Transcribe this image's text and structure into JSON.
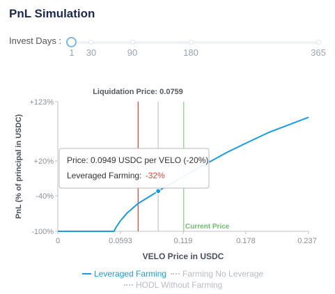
{
  "page_title": "PnL Simulation",
  "invest_days": {
    "label": "Invest Days :",
    "marks": [
      "1",
      "30",
      "90",
      "180",
      "365"
    ],
    "selected": "1"
  },
  "chart_data": {
    "type": "line",
    "x_label": "VELO Price in USDC",
    "y_label": "PnL (% of principal in USDC)",
    "x_ticks": [
      "0",
      "0.0593",
      "0.119",
      "0.178",
      "0.237"
    ],
    "y_ticks": [
      "+123%",
      "+20%",
      "-40%",
      "-100%"
    ],
    "xlim": [
      0,
      0.237
    ],
    "series": [
      {
        "name": "Leveraged Farming",
        "color": "#1a9ae0",
        "x": [
          0,
          0.0531,
          0.0552,
          0.0593,
          0.0656,
          0.0759,
          0.0949,
          0.119,
          0.14,
          0.16,
          0.178,
          0.2,
          0.22,
          0.237
        ],
        "y": [
          -100,
          -100,
          -93,
          -82,
          -69,
          -53,
          -32,
          -6,
          15,
          35,
          51,
          70,
          84,
          96
        ]
      }
    ],
    "legend": [
      {
        "label": "Leveraged Farming",
        "active": true,
        "color": "#1a9ae0"
      },
      {
        "label": "Farming No Leverage",
        "active": false,
        "color": "#c8c8c8"
      },
      {
        "label": "HODL Without Farming",
        "active": false,
        "color": "#c8c8c8"
      }
    ],
    "reference_lines": [
      {
        "label": "Liquidation Price: 0.0759",
        "x": 0.0759,
        "color": "#e0483e"
      },
      {
        "label": "",
        "x": 0.0949,
        "color": "#c9c9c9"
      },
      {
        "label": "Current Price",
        "x": 0.119,
        "color": "#8fd08f"
      }
    ],
    "tooltip": {
      "price_text": "Price: 0.0949 USDC per VELO (-20%)",
      "farming_label": "Leveraged Farming:",
      "farming_value": "-32%",
      "farming_value_color": "#e0483e",
      "point": {
        "x": 0.0949,
        "y": -32
      }
    }
  }
}
